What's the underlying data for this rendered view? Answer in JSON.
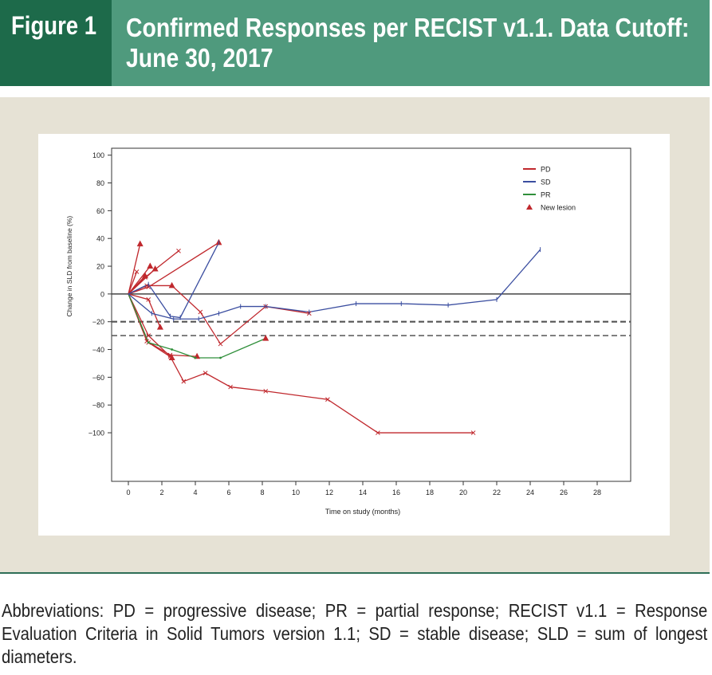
{
  "header": {
    "figure_label": "Figure 1",
    "title": "Confirmed Responses per RECIST v1.1. Data Cutoff: June 30, 2017"
  },
  "caption": "Abbreviations: PD = progressive disease; PR = partial response; RECIST v1.1 = Response Evaluation Criteria in Solid Tumors version 1.1; SD = stable disease; SLD = sum of longest diameters.",
  "colors": {
    "PD": "#c0282d",
    "SD": "#3b4ea0",
    "PR": "#2f8f3a",
    "New lesion": "#c0282d",
    "reference": "#555555"
  },
  "chart_data": {
    "type": "line",
    "title": "",
    "xlabel": "Time on study (months)",
    "ylabel": "Change in SLD from baseline (%)",
    "xlim": [
      -1,
      30
    ],
    "ylim": [
      -135,
      105
    ],
    "xticks": [
      0,
      2,
      4,
      6,
      8,
      10,
      12,
      14,
      16,
      18,
      20,
      22,
      24,
      26,
      28
    ],
    "yticks": [
      100,
      80,
      60,
      40,
      20,
      0,
      -20,
      -40,
      -60,
      -80,
      -100
    ],
    "reference_lines": [
      {
        "y": 0,
        "style": "solid"
      },
      {
        "y": -20,
        "style": "dashed"
      },
      {
        "y": -30,
        "style": "dashed"
      }
    ],
    "legend": {
      "position": "top-right",
      "entries": [
        {
          "label": "PD",
          "kind": "line",
          "color_key": "PD"
        },
        {
          "label": "SD",
          "kind": "line",
          "color_key": "SD"
        },
        {
          "label": "PR",
          "kind": "line",
          "color_key": "PR"
        },
        {
          "label": "New lesion",
          "kind": "triangle",
          "color_key": "New lesion"
        }
      ]
    },
    "series": [
      {
        "name": "PD",
        "category": "PD",
        "points": [
          [
            0,
            0
          ],
          [
            0.7,
            36
          ]
        ],
        "new_lesion": [
          [
            0.7,
            36
          ]
        ]
      },
      {
        "name": "PD",
        "category": "PD",
        "points": [
          [
            0,
            0
          ],
          [
            0.5,
            16
          ]
        ]
      },
      {
        "name": "PD",
        "category": "PD",
        "points": [
          [
            0,
            0
          ],
          [
            1.0,
            13
          ]
        ],
        "new_lesion": [
          [
            1.0,
            13
          ]
        ]
      },
      {
        "name": "PD",
        "category": "PD",
        "points": [
          [
            0,
            0
          ],
          [
            1.3,
            20
          ]
        ],
        "new_lesion": [
          [
            1.3,
            20
          ]
        ]
      },
      {
        "name": "PD",
        "category": "PD",
        "points": [
          [
            0,
            0
          ],
          [
            1.6,
            18
          ]
        ],
        "new_lesion": [
          [
            1.6,
            18
          ]
        ]
      },
      {
        "name": "PD",
        "category": "PD",
        "points": [
          [
            0,
            0
          ],
          [
            1.0,
            12
          ],
          [
            3.0,
            31
          ]
        ]
      },
      {
        "name": "PD",
        "category": "PD",
        "points": [
          [
            0,
            0
          ],
          [
            1.2,
            5
          ],
          [
            5.4,
            37
          ]
        ],
        "new_lesion": [
          [
            5.4,
            37
          ]
        ]
      },
      {
        "name": "PD",
        "category": "PD",
        "points": [
          [
            0,
            0
          ],
          [
            1.1,
            6
          ],
          [
            2.6,
            6
          ],
          [
            4.3,
            -13
          ],
          [
            5.5,
            -36
          ],
          [
            8.2,
            -9
          ],
          [
            10.8,
            -14
          ]
        ],
        "new_lesion": [
          [
            2.6,
            6
          ]
        ]
      },
      {
        "name": "PD",
        "category": "PD",
        "points": [
          [
            0,
            0
          ],
          [
            1.2,
            -4
          ],
          [
            1.9,
            -24
          ]
        ],
        "new_lesion": [
          [
            1.9,
            -24
          ]
        ]
      },
      {
        "name": "PD",
        "category": "PD",
        "points": [
          [
            0,
            0
          ],
          [
            1.2,
            -35
          ],
          [
            2.6,
            -46
          ]
        ],
        "new_lesion": [
          [
            2.6,
            -46
          ]
        ]
      },
      {
        "name": "PD",
        "category": "PD",
        "points": [
          [
            0,
            0
          ],
          [
            1.1,
            -34
          ],
          [
            2.5,
            -44
          ],
          [
            4.1,
            -45
          ]
        ],
        "new_lesion": [
          [
            4.1,
            -45
          ]
        ]
      },
      {
        "name": "PD",
        "category": "PD",
        "points": [
          [
            0,
            0
          ],
          [
            1.2,
            -30
          ],
          [
            2.5,
            -45
          ],
          [
            3.3,
            -63
          ],
          [
            4.6,
            -57
          ],
          [
            6.1,
            -67
          ],
          [
            8.2,
            -70
          ],
          [
            11.9,
            -76
          ],
          [
            14.9,
            -100
          ],
          [
            20.6,
            -100
          ]
        ]
      },
      {
        "name": "PR",
        "category": "PR",
        "points": [
          [
            0,
            0
          ],
          [
            1.2,
            -35
          ],
          [
            2.6,
            -40
          ],
          [
            4.0,
            -46
          ],
          [
            5.5,
            -46
          ],
          [
            8.2,
            -32
          ]
        ],
        "new_lesion": [
          [
            8.2,
            -32
          ]
        ]
      },
      {
        "name": "SD",
        "category": "SD",
        "points": [
          [
            0,
            0
          ],
          [
            1.4,
            -14
          ],
          [
            2.7,
            -18
          ],
          [
            4.2,
            -18
          ],
          [
            5.4,
            -14
          ],
          [
            6.7,
            -9
          ],
          [
            8.2,
            -9
          ],
          [
            10.8,
            -13
          ],
          [
            13.6,
            -7
          ],
          [
            16.3,
            -7
          ],
          [
            19.1,
            -8
          ],
          [
            22.0,
            -4
          ],
          [
            24.6,
            32
          ]
        ]
      },
      {
        "name": "SD",
        "category": "SD",
        "points": [
          [
            0,
            0
          ],
          [
            1.2,
            7
          ],
          [
            2.5,
            -16
          ],
          [
            3.1,
            -17
          ],
          [
            5.4,
            37
          ]
        ]
      }
    ]
  }
}
